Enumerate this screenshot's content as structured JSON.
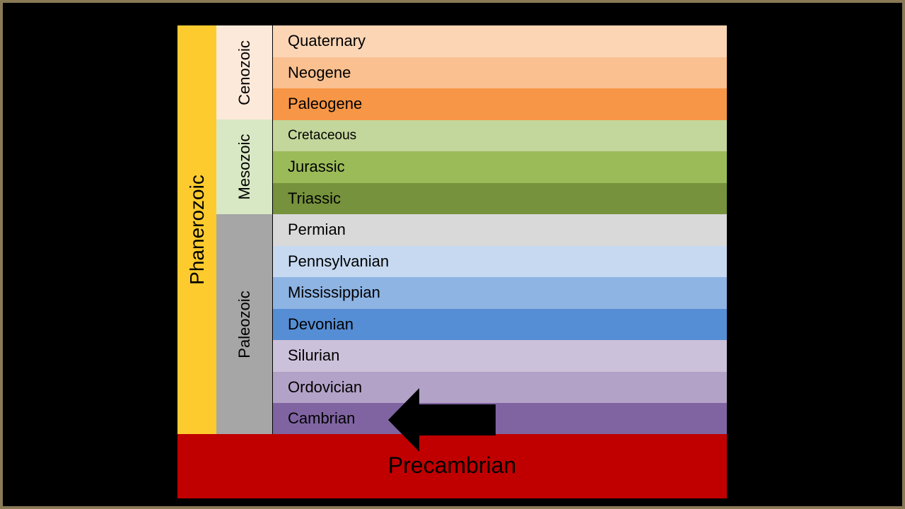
{
  "eon": {
    "label": "Phanerozoic",
    "color": "#fecb2f"
  },
  "eras": [
    {
      "label": "Cenozoic",
      "color": "#fde9d9"
    },
    {
      "label": "Mesozoic",
      "color": "#d8e8c4"
    },
    {
      "label": "Paleozoic",
      "color": "#a6a6a6"
    }
  ],
  "periods": [
    {
      "label": "Quaternary",
      "color": "#fcd5b5"
    },
    {
      "label": "Neogene",
      "color": "#fac090"
    },
    {
      "label": "Paleogene",
      "color": "#f79646"
    },
    {
      "label": "Cretaceous",
      "color": "#c3d69b"
    },
    {
      "label": "Jurassic",
      "color": "#9bbb59"
    },
    {
      "label": "Triassic",
      "color": "#76923c"
    },
    {
      "label": "Permian",
      "color": "#d9d9d9"
    },
    {
      "label": "Pennsylvanian",
      "color": "#c6d9f1"
    },
    {
      "label": "Mississippian",
      "color": "#8eb4e3"
    },
    {
      "label": "Devonian",
      "color": "#558ed5"
    },
    {
      "label": "Silurian",
      "color": "#ccc1da"
    },
    {
      "label": "Ordovician",
      "color": "#b3a2c7"
    },
    {
      "label": "Cambrian",
      "color": "#8064a2"
    }
  ],
  "precambrian": {
    "label": "Precambrian",
    "color": "#c00000"
  },
  "arrow": {
    "icon": "left-arrow-icon",
    "points_to": "Cambrian",
    "color": "#000000"
  }
}
